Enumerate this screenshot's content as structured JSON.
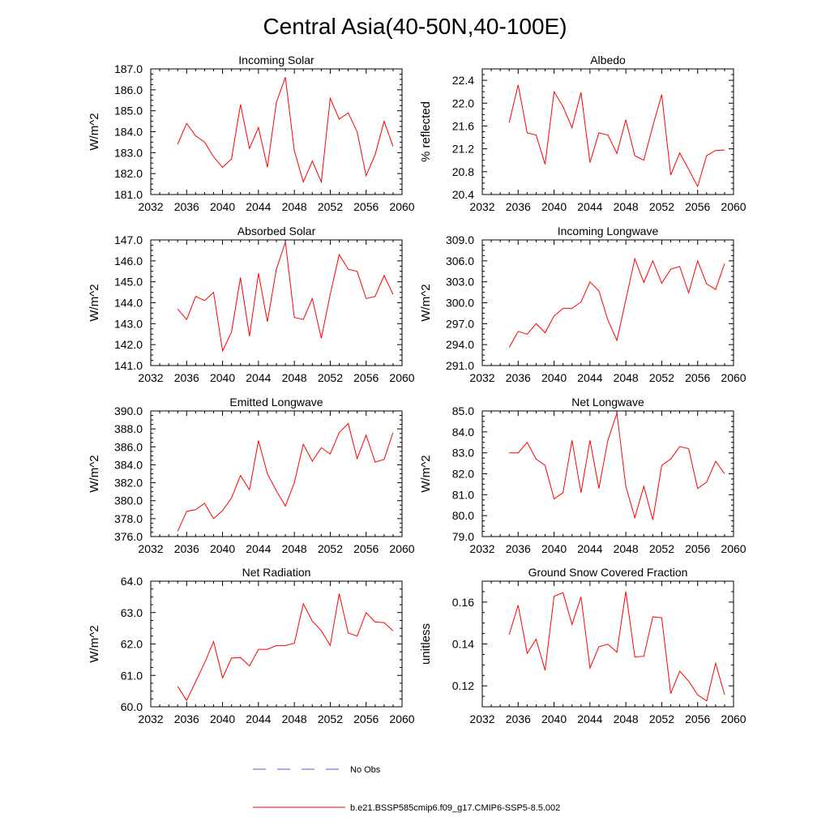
{
  "figure": {
    "title": "Central Asia(40-50N,40-100E)",
    "legend": [
      {
        "label": "No Obs",
        "color": "#5b5bd6",
        "style": "dashed"
      },
      {
        "label": "b.e21.BSSP585cmip6.f09_g17.CMIP6-SSP5-8.5.002",
        "color": "#ff0000",
        "style": "solid"
      }
    ]
  },
  "chart_data": [
    {
      "type": "line",
      "title": "Incoming Solar",
      "ylabel": "W/m^2",
      "x": [
        2035,
        2036,
        2037,
        2038,
        2039,
        2040,
        2041,
        2042,
        2043,
        2044,
        2045,
        2046,
        2047,
        2048,
        2049,
        2050,
        2051,
        2052,
        2053,
        2054,
        2055,
        2056,
        2057,
        2058,
        2059
      ],
      "xlim": [
        2032,
        2060
      ],
      "xticks": [
        "2032",
        "2036",
        "2040",
        "2044",
        "2048",
        "2052",
        "2056",
        "2060"
      ],
      "ylim": [
        181.0,
        187.0
      ],
      "yticks": [
        "181.0",
        "182.0",
        "183.0",
        "184.0",
        "185.0",
        "186.0",
        "187.0"
      ],
      "series": [
        {
          "name": "b.e21.BSSP585cmip6.f09_g17.CMIP6-SSP5-8.5.002",
          "color": "#ff0000",
          "values": [
            183.4,
            184.4,
            183.8,
            183.5,
            182.8,
            182.3,
            182.7,
            185.3,
            183.2,
            184.2,
            182.3,
            185.4,
            186.6,
            183.1,
            181.6,
            182.6,
            181.6,
            185.6,
            184.6,
            184.9,
            184.0,
            181.9,
            182.9,
            184.5,
            183.3
          ]
        }
      ]
    },
    {
      "type": "line",
      "title": "Albedo",
      "ylabel": "% reflected",
      "x": [
        2035,
        2036,
        2037,
        2038,
        2039,
        2040,
        2041,
        2042,
        2043,
        2044,
        2045,
        2046,
        2047,
        2048,
        2049,
        2050,
        2051,
        2052,
        2053,
        2054,
        2055,
        2056,
        2057,
        2058,
        2059
      ],
      "xlim": [
        2032,
        2060
      ],
      "xticks": [
        "2032",
        "2036",
        "2040",
        "2044",
        "2048",
        "2052",
        "2056",
        "2060"
      ],
      "ylim": [
        20.4,
        22.6
      ],
      "yticks": [
        "20.4",
        "20.8",
        "21.2",
        "21.6",
        "22.0",
        "22.4"
      ],
      "series": [
        {
          "name": "b.e21.BSSP585cmip6.f09_g17.CMIP6-SSP5-8.5.002",
          "color": "#ff0000",
          "values": [
            21.66,
            22.32,
            21.48,
            21.44,
            20.93,
            22.2,
            21.94,
            21.57,
            22.19,
            20.96,
            21.48,
            21.44,
            21.12,
            21.71,
            21.08,
            21.0,
            21.6,
            22.15,
            20.74,
            21.13,
            20.84,
            20.54,
            21.08,
            21.17,
            21.18
          ]
        }
      ]
    },
    {
      "type": "line",
      "title": "Absorbed Solar",
      "ylabel": "W/m^2",
      "x": [
        2035,
        2036,
        2037,
        2038,
        2039,
        2040,
        2041,
        2042,
        2043,
        2044,
        2045,
        2046,
        2047,
        2048,
        2049,
        2050,
        2051,
        2052,
        2053,
        2054,
        2055,
        2056,
        2057,
        2058,
        2059
      ],
      "xlim": [
        2032,
        2060
      ],
      "xticks": [
        "2032",
        "2036",
        "2040",
        "2044",
        "2048",
        "2052",
        "2056",
        "2060"
      ],
      "ylim": [
        141.0,
        147.0
      ],
      "yticks": [
        "141.0",
        "142.0",
        "143.0",
        "144.0",
        "145.0",
        "146.0",
        "147.0"
      ],
      "series": [
        {
          "name": "b.e21.BSSP585cmip6.f09_g17.CMIP6-SSP5-8.5.002",
          "color": "#ff0000",
          "values": [
            143.7,
            143.2,
            144.3,
            144.1,
            144.5,
            141.7,
            142.6,
            145.2,
            142.4,
            145.4,
            143.1,
            145.6,
            146.9,
            143.3,
            143.2,
            144.2,
            142.3,
            144.4,
            146.3,
            145.6,
            145.5,
            144.2,
            144.3,
            145.3,
            144.4
          ]
        }
      ]
    },
    {
      "type": "line",
      "title": "Incoming Longwave",
      "ylabel": "W/m^2",
      "x": [
        2035,
        2036,
        2037,
        2038,
        2039,
        2040,
        2041,
        2042,
        2043,
        2044,
        2045,
        2046,
        2047,
        2048,
        2049,
        2050,
        2051,
        2052,
        2053,
        2054,
        2055,
        2056,
        2057,
        2058,
        2059
      ],
      "xlim": [
        2032,
        2060
      ],
      "xticks": [
        "2032",
        "2036",
        "2040",
        "2044",
        "2048",
        "2052",
        "2056",
        "2060"
      ],
      "ylim": [
        291.0,
        309.0
      ],
      "yticks": [
        "291.0",
        "294.0",
        "297.0",
        "300.0",
        "303.0",
        "306.0",
        "309.0"
      ],
      "series": [
        {
          "name": "b.e21.BSSP585cmip6.f09_g17.CMIP6-SSP5-8.5.002",
          "color": "#ff0000",
          "values": [
            293.6,
            295.9,
            295.5,
            297.0,
            295.7,
            298.1,
            299.2,
            299.2,
            300.1,
            303.0,
            301.7,
            297.5,
            294.6,
            300.4,
            306.3,
            302.9,
            306.0,
            302.8,
            304.8,
            305.2,
            301.4,
            306.0,
            302.7,
            301.9,
            305.6
          ]
        }
      ]
    },
    {
      "type": "line",
      "title": "Emitted Longwave",
      "ylabel": "W/m^2",
      "x": [
        2035,
        2036,
        2037,
        2038,
        2039,
        2040,
        2041,
        2042,
        2043,
        2044,
        2045,
        2046,
        2047,
        2048,
        2049,
        2050,
        2051,
        2052,
        2053,
        2054,
        2055,
        2056,
        2057,
        2058,
        2059
      ],
      "xlim": [
        2032,
        2060
      ],
      "xticks": [
        "2032",
        "2036",
        "2040",
        "2044",
        "2048",
        "2052",
        "2056",
        "2060"
      ],
      "ylim": [
        376.0,
        390.0
      ],
      "yticks": [
        "376.0",
        "378.0",
        "380.0",
        "382.0",
        "384.0",
        "386.0",
        "388.0",
        "390.0"
      ],
      "series": [
        {
          "name": "b.e21.BSSP585cmip6.f09_g17.CMIP6-SSP5-8.5.002",
          "color": "#ff0000",
          "values": [
            376.6,
            378.8,
            379.0,
            379.7,
            378.0,
            378.9,
            380.3,
            382.8,
            381.2,
            386.7,
            383.0,
            381.1,
            379.4,
            382.0,
            386.3,
            384.4,
            385.9,
            385.2,
            387.6,
            388.6,
            384.7,
            387.3,
            384.3,
            384.6,
            387.6
          ]
        }
      ]
    },
    {
      "type": "line",
      "title": "Net Longwave",
      "ylabel": "W/m^2",
      "x": [
        2035,
        2036,
        2037,
        2038,
        2039,
        2040,
        2041,
        2042,
        2043,
        2044,
        2045,
        2046,
        2047,
        2048,
        2049,
        2050,
        2051,
        2052,
        2053,
        2054,
        2055,
        2056,
        2057,
        2058,
        2059
      ],
      "xlim": [
        2032,
        2060
      ],
      "xticks": [
        "2032",
        "2036",
        "2040",
        "2044",
        "2048",
        "2052",
        "2056",
        "2060"
      ],
      "ylim": [
        79.0,
        85.0
      ],
      "yticks": [
        "79.0",
        "80.0",
        "81.0",
        "82.0",
        "83.0",
        "84.0",
        "85.0"
      ],
      "series": [
        {
          "name": "b.e21.BSSP585cmip6.f09_g17.CMIP6-SSP5-8.5.002",
          "color": "#ff0000",
          "values": [
            83.0,
            83.0,
            83.5,
            82.7,
            82.4,
            80.8,
            81.1,
            83.6,
            81.1,
            83.6,
            81.3,
            83.6,
            84.9,
            81.4,
            79.9,
            81.4,
            79.8,
            82.4,
            82.7,
            83.3,
            83.2,
            81.3,
            81.6,
            82.6,
            82.0
          ]
        }
      ]
    },
    {
      "type": "line",
      "title": "Net Radiation",
      "ylabel": "W/m^2",
      "x": [
        2035,
        2036,
        2037,
        2038,
        2039,
        2040,
        2041,
        2042,
        2043,
        2044,
        2045,
        2046,
        2047,
        2048,
        2049,
        2050,
        2051,
        2052,
        2053,
        2054,
        2055,
        2056,
        2057,
        2058,
        2059
      ],
      "xlim": [
        2032,
        2060
      ],
      "xticks": [
        "2032",
        "2036",
        "2040",
        "2044",
        "2048",
        "2052",
        "2056",
        "2060"
      ],
      "ylim": [
        60.0,
        64.0
      ],
      "yticks": [
        "60.0",
        "61.0",
        "62.0",
        "63.0",
        "64.0"
      ],
      "series": [
        {
          "name": "b.e21.BSSP585cmip6.f09_g17.CMIP6-SSP5-8.5.002",
          "color": "#ff0000",
          "values": [
            60.65,
            60.2,
            60.8,
            61.4,
            62.08,
            60.92,
            61.55,
            61.57,
            61.3,
            61.83,
            61.83,
            61.95,
            61.95,
            62.02,
            63.28,
            62.73,
            62.42,
            61.95,
            63.6,
            62.35,
            62.25,
            63.0,
            62.7,
            62.68,
            62.42
          ]
        }
      ]
    },
    {
      "type": "line",
      "title": "Ground Snow Covered Fraction",
      "ylabel": "unitless",
      "x": [
        2035,
        2036,
        2037,
        2038,
        2039,
        2040,
        2041,
        2042,
        2043,
        2044,
        2045,
        2046,
        2047,
        2048,
        2049,
        2050,
        2051,
        2052,
        2053,
        2054,
        2055,
        2056,
        2057,
        2058,
        2059
      ],
      "xlim": [
        2032,
        2060
      ],
      "xticks": [
        "2032",
        "2036",
        "2040",
        "2044",
        "2048",
        "2052",
        "2056",
        "2060"
      ],
      "ylim": [
        0.11,
        0.17
      ],
      "yticks": [
        "0.12",
        "0.14",
        "0.16"
      ],
      "series": [
        {
          "name": "b.e21.BSSP585cmip6.f09_g17.CMIP6-SSP5-8.5.002",
          "color": "#ff0000",
          "values": [
            0.1445,
            0.1585,
            0.1355,
            0.1423,
            0.1274,
            0.1628,
            0.1645,
            0.1493,
            0.1625,
            0.1285,
            0.1387,
            0.1399,
            0.1361,
            0.1651,
            0.1338,
            0.1341,
            0.153,
            0.1525,
            0.1163,
            0.127,
            0.1223,
            0.1157,
            0.1128,
            0.1308,
            0.1158
          ]
        }
      ]
    }
  ]
}
